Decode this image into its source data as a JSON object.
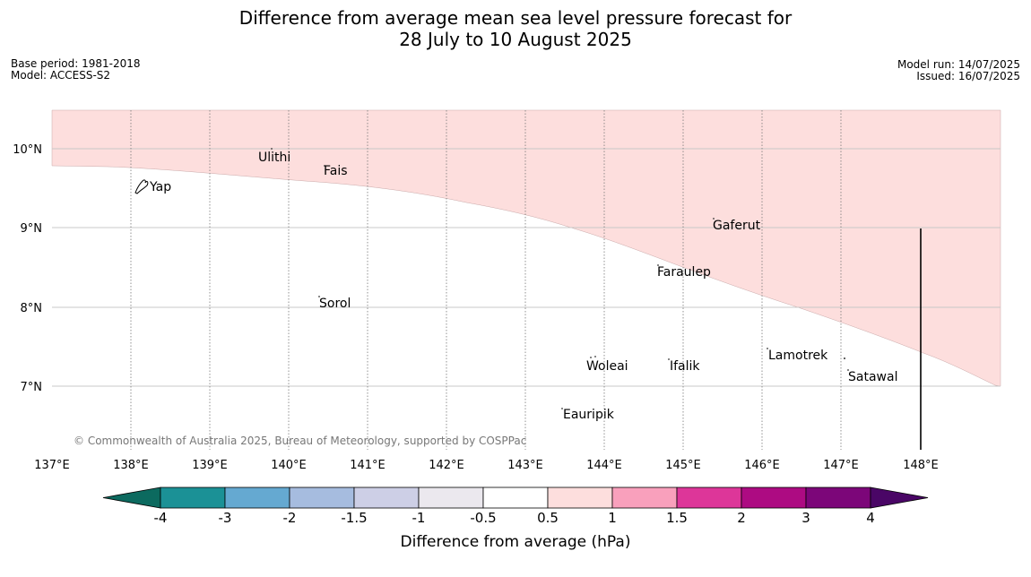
{
  "header": {
    "title_line1": "Difference from average mean sea level pressure forecast for",
    "title_line2": "28 July to 10 August 2025",
    "base_period": "Base period: 1981-2018",
    "model": "Model: ACCESS-S2",
    "model_run": "Model run: 14/07/2025",
    "issued": "Issued: 16/07/2025"
  },
  "map": {
    "lon_ticks": [
      "137°E",
      "138°E",
      "139°E",
      "140°E",
      "141°E",
      "142°E",
      "143°E",
      "144°E",
      "145°E",
      "146°E",
      "147°E",
      "148°E"
    ],
    "lat_ticks": [
      "10°N",
      "9°N",
      "8°N",
      "7°N"
    ],
    "copyright": "© Commonwealth of Australia 2025, Bureau of Meteorology, supported by COSPPac",
    "places": [
      "Ulithi",
      "Fais",
      "Yap",
      "Gaferut",
      "Faraulep",
      "Sorol",
      "Lamotrek",
      "Woleai",
      "Ifalik",
      "Satawal",
      "Eauripik"
    ],
    "shaded_category": "0.5 to 1 hPa",
    "shaded_color": "#fddedd"
  },
  "colorbar": {
    "labels": [
      "-4",
      "-3",
      "-2",
      "-1.5",
      "-1",
      "-0.5",
      "0.5",
      "1",
      "1.5",
      "2",
      "3",
      "4"
    ],
    "colors": [
      "#0c6a5f",
      "#1b9196",
      "#65a9d1",
      "#a6bcdf",
      "#cdcfe6",
      "#ebe8ee",
      "#ffffff",
      "#fddedd",
      "#f9a0bc",
      "#dd3699",
      "#ad0b82",
      "#7c0679",
      "#4a0666"
    ],
    "label": "Difference from average (hPa)"
  }
}
